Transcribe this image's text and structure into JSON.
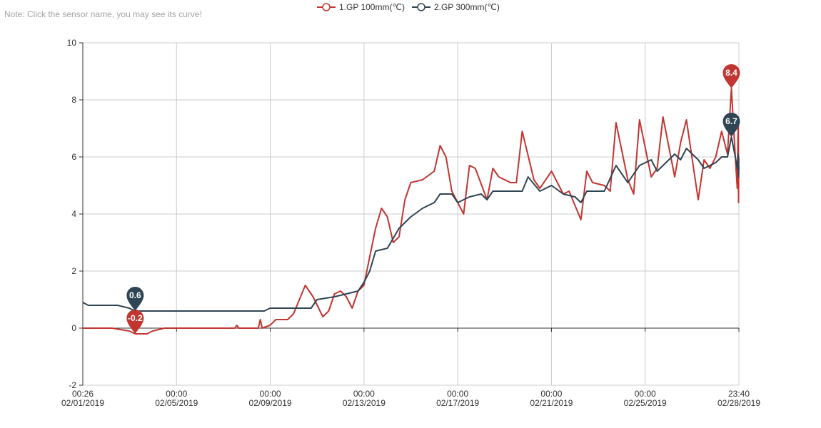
{
  "note": "Note: Click the sensor name, you may see its curve!",
  "colors": {
    "series1": "#c23531",
    "series2": "#2f4554",
    "grid": "#cccccc",
    "axis": "#333333"
  },
  "legend": [
    {
      "label": "1.GP 100mm(℃)",
      "color": "#c23531"
    },
    {
      "label": "2.GP 300mm(℃)",
      "color": "#2f4554"
    }
  ],
  "chart_data": {
    "type": "line",
    "title": "",
    "xlabel": "",
    "ylabel": "",
    "ylim": [
      -2,
      10
    ],
    "yticks": [
      -2,
      0,
      2,
      4,
      6,
      8,
      10
    ],
    "xlim": [
      "2019-02-01 00:26",
      "2019-02-28 23:40"
    ],
    "xticks": [
      {
        "time": "00:26",
        "date": "02/01/2019"
      },
      {
        "time": "00:00",
        "date": "02/05/2019"
      },
      {
        "time": "00:00",
        "date": "02/09/2019"
      },
      {
        "time": "00:00",
        "date": "02/13/2019"
      },
      {
        "time": "00:00",
        "date": "02/17/2019"
      },
      {
        "time": "00:00",
        "date": "02/21/2019"
      },
      {
        "time": "00:00",
        "date": "02/25/2019"
      },
      {
        "time": "23:40",
        "date": "02/28/2019"
      }
    ],
    "grid": true,
    "legend_position": "top-center",
    "series": [
      {
        "name": "1.GP 100mm(℃)",
        "color": "#c23531",
        "points": [
          [
            "2019-02-01 00:26",
            0
          ],
          [
            "2019-02-02 06:00",
            0
          ],
          [
            "2019-02-03 00:00",
            -0.1
          ],
          [
            "2019-02-03 06:00",
            -0.2
          ],
          [
            "2019-02-03 18:00",
            -0.2
          ],
          [
            "2019-02-04 00:00",
            -0.1
          ],
          [
            "2019-02-04 12:00",
            0
          ],
          [
            "2019-02-07 12:00",
            0
          ],
          [
            "2019-02-07 14:00",
            0.1
          ],
          [
            "2019-02-07 16:00",
            0
          ],
          [
            "2019-02-08 12:00",
            0
          ],
          [
            "2019-02-08 14:00",
            0.3
          ],
          [
            "2019-02-08 16:00",
            0
          ],
          [
            "2019-02-09 00:00",
            0.1
          ],
          [
            "2019-02-09 06:00",
            0.3
          ],
          [
            "2019-02-09 18:00",
            0.3
          ],
          [
            "2019-02-10 00:00",
            0.5
          ],
          [
            "2019-02-10 12:00",
            1.5
          ],
          [
            "2019-02-10 20:00",
            1.1
          ],
          [
            "2019-02-11 06:00",
            0.4
          ],
          [
            "2019-02-11 12:00",
            0.6
          ],
          [
            "2019-02-11 18:00",
            1.2
          ],
          [
            "2019-02-12 00:00",
            1.3
          ],
          [
            "2019-02-12 06:00",
            1.1
          ],
          [
            "2019-02-12 12:00",
            0.7
          ],
          [
            "2019-02-12 18:00",
            1.3
          ],
          [
            "2019-02-13 00:00",
            1.5
          ],
          [
            "2019-02-13 06:00",
            2.5
          ],
          [
            "2019-02-13 12:00",
            3.5
          ],
          [
            "2019-02-13 18:00",
            4.2
          ],
          [
            "2019-02-14 00:00",
            3.9
          ],
          [
            "2019-02-14 06:00",
            3.0
          ],
          [
            "2019-02-14 12:00",
            3.2
          ],
          [
            "2019-02-14 18:00",
            4.5
          ],
          [
            "2019-02-15 00:00",
            5.1
          ],
          [
            "2019-02-15 12:00",
            5.2
          ],
          [
            "2019-02-16 00:00",
            5.5
          ],
          [
            "2019-02-16 06:00",
            6.4
          ],
          [
            "2019-02-16 12:00",
            6.0
          ],
          [
            "2019-02-16 18:00",
            4.8
          ],
          [
            "2019-02-17 06:00",
            4.0
          ],
          [
            "2019-02-17 12:00",
            5.7
          ],
          [
            "2019-02-17 18:00",
            5.6
          ],
          [
            "2019-02-18 06:00",
            4.5
          ],
          [
            "2019-02-18 12:00",
            5.6
          ],
          [
            "2019-02-18 18:00",
            5.3
          ],
          [
            "2019-02-19 06:00",
            5.1
          ],
          [
            "2019-02-19 12:00",
            5.1
          ],
          [
            "2019-02-19 18:00",
            6.9
          ],
          [
            "2019-02-20 06:00",
            5.2
          ],
          [
            "2019-02-20 12:00",
            4.9
          ],
          [
            "2019-02-21 00:00",
            5.5
          ],
          [
            "2019-02-21 06:00",
            5.1
          ],
          [
            "2019-02-21 12:00",
            4.7
          ],
          [
            "2019-02-21 18:00",
            4.8
          ],
          [
            "2019-02-22 06:00",
            3.8
          ],
          [
            "2019-02-22 12:00",
            5.5
          ],
          [
            "2019-02-22 18:00",
            5.1
          ],
          [
            "2019-02-23 06:00",
            5.0
          ],
          [
            "2019-02-23 12:00",
            4.8
          ],
          [
            "2019-02-23 18:00",
            7.2
          ],
          [
            "2019-02-24 06:00",
            5.2
          ],
          [
            "2019-02-24 12:00",
            4.7
          ],
          [
            "2019-02-24 18:00",
            7.3
          ],
          [
            "2019-02-25 06:00",
            5.3
          ],
          [
            "2019-02-25 12:00",
            5.6
          ],
          [
            "2019-02-25 18:00",
            7.4
          ],
          [
            "2019-02-26 06:00",
            5.3
          ],
          [
            "2019-02-26 12:00",
            6.5
          ],
          [
            "2019-02-26 18:00",
            7.3
          ],
          [
            "2019-02-27 06:00",
            4.5
          ],
          [
            "2019-02-27 12:00",
            5.9
          ],
          [
            "2019-02-27 18:00",
            5.6
          ],
          [
            "2019-02-28 00:00",
            6.0
          ],
          [
            "2019-02-28 06:00",
            6.9
          ],
          [
            "2019-02-28 12:00",
            6.1
          ],
          [
            "2019-02-28 16:00",
            8.4
          ],
          [
            "2019-02-28 20:00",
            6.0
          ],
          [
            "2019-02-28 22:00",
            4.9
          ],
          [
            "2019-02-28 23:00",
            7.4
          ],
          [
            "2019-02-28 23:20",
            4.4
          ],
          [
            "2019-02-28 23:30",
            6.0
          ],
          [
            "2019-02-28 23:40",
            5.8
          ]
        ]
      },
      {
        "name": "2.GP 300mm(℃)",
        "color": "#2f4554",
        "points": [
          [
            "2019-02-01 00:26",
            0.9
          ],
          [
            "2019-02-01 06:00",
            0.8
          ],
          [
            "2019-02-02 12:00",
            0.8
          ],
          [
            "2019-02-03 00:00",
            0.7
          ],
          [
            "2019-02-03 06:00",
            0.6
          ],
          [
            "2019-02-08 18:00",
            0.6
          ],
          [
            "2019-02-09 00:00",
            0.7
          ],
          [
            "2019-02-10 18:00",
            0.7
          ],
          [
            "2019-02-11 00:00",
            1.0
          ],
          [
            "2019-02-11 18:00",
            1.1
          ],
          [
            "2019-02-12 06:00",
            1.2
          ],
          [
            "2019-02-12 18:00",
            1.3
          ],
          [
            "2019-02-13 00:00",
            1.6
          ],
          [
            "2019-02-13 06:00",
            2.0
          ],
          [
            "2019-02-13 12:00",
            2.7
          ],
          [
            "2019-02-14 00:00",
            2.8
          ],
          [
            "2019-02-14 12:00",
            3.5
          ],
          [
            "2019-02-15 00:00",
            3.9
          ],
          [
            "2019-02-15 12:00",
            4.2
          ],
          [
            "2019-02-16 00:00",
            4.4
          ],
          [
            "2019-02-16 06:00",
            4.7
          ],
          [
            "2019-02-16 18:00",
            4.7
          ],
          [
            "2019-02-17 00:00",
            4.4
          ],
          [
            "2019-02-17 12:00",
            4.6
          ],
          [
            "2019-02-18 00:00",
            4.7
          ],
          [
            "2019-02-18 06:00",
            4.5
          ],
          [
            "2019-02-18 12:00",
            4.8
          ],
          [
            "2019-02-19 18:00",
            4.8
          ],
          [
            "2019-02-20 00:00",
            5.3
          ],
          [
            "2019-02-20 12:00",
            4.8
          ],
          [
            "2019-02-21 00:00",
            5.0
          ],
          [
            "2019-02-21 12:00",
            4.7
          ],
          [
            "2019-02-22 00:00",
            4.6
          ],
          [
            "2019-02-22 06:00",
            4.4
          ],
          [
            "2019-02-22 12:00",
            4.8
          ],
          [
            "2019-02-23 06:00",
            4.8
          ],
          [
            "2019-02-23 18:00",
            5.7
          ],
          [
            "2019-02-24 06:00",
            5.1
          ],
          [
            "2019-02-24 18:00",
            5.7
          ],
          [
            "2019-02-25 06:00",
            5.9
          ],
          [
            "2019-02-25 12:00",
            5.5
          ],
          [
            "2019-02-25 18:00",
            5.7
          ],
          [
            "2019-02-26 06:00",
            6.1
          ],
          [
            "2019-02-26 12:00",
            5.9
          ],
          [
            "2019-02-26 18:00",
            6.3
          ],
          [
            "2019-02-27 06:00",
            5.9
          ],
          [
            "2019-02-27 12:00",
            5.6
          ],
          [
            "2019-02-28 00:00",
            5.8
          ],
          [
            "2019-02-28 06:00",
            6.0
          ],
          [
            "2019-02-28 12:00",
            6.0
          ],
          [
            "2019-02-28 16:00",
            6.7
          ],
          [
            "2019-02-28 20:00",
            6.0
          ],
          [
            "2019-02-28 22:00",
            5.6
          ],
          [
            "2019-02-28 23:00",
            6.1
          ],
          [
            "2019-02-28 23:20",
            5.3
          ],
          [
            "2019-02-28 23:40",
            5.7
          ]
        ]
      }
    ],
    "markers": [
      {
        "series": 0,
        "kind": "min",
        "x": "2019-02-03 06:00",
        "y": -0.2,
        "label": "-0.2"
      },
      {
        "series": 0,
        "kind": "max",
        "x": "2019-02-28 16:00",
        "y": 8.4,
        "label": "8.4"
      },
      {
        "series": 1,
        "kind": "min",
        "x": "2019-02-03 06:00",
        "y": 0.6,
        "label": "0.6"
      },
      {
        "series": 1,
        "kind": "max",
        "x": "2019-02-28 16:00",
        "y": 6.7,
        "label": "6.7"
      }
    ]
  }
}
